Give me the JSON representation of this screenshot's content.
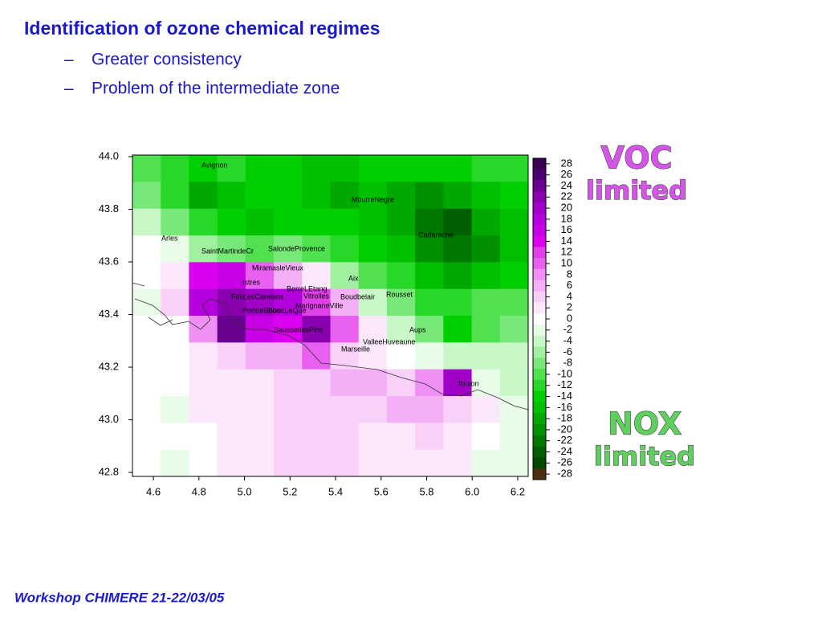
{
  "header": {
    "title": "Identification of ozone chemical regimes"
  },
  "bullets": [
    "Greater consistency",
    "Problem of the intermediate zone"
  ],
  "map": {
    "type": "heatmap",
    "xlim": [
      4.508,
      6.246
    ],
    "ylim": [
      42.785,
      44.006
    ],
    "xticks": [
      4.6,
      4.8,
      {
        "value": 5.0,
        "label": "5.0"
      },
      5.2,
      5.4,
      5.6,
      5.8,
      {
        "value": 6.0,
        "label": "6.0"
      },
      6.2
    ],
    "yticks": [
      {
        "value": 44.0,
        "label": "44.0"
      },
      43.8,
      43.6,
      43.4,
      43.2,
      {
        "value": 43.0,
        "label": "43.0"
      },
      42.8
    ],
    "colorbar": {
      "ticks": [
        28,
        26,
        24,
        22,
        20,
        18,
        16,
        14,
        12,
        10,
        8,
        6,
        4,
        2,
        0,
        -2,
        -4,
        -6,
        -8,
        -10,
        -12,
        -14,
        -16,
        -18,
        -20,
        -22,
        -24,
        -26,
        -28
      ],
      "colors": [
        "#3a0050",
        "#4b0070",
        "#6a0090",
        "#8a00b0",
        "#a000c8",
        "#b400dc",
        "#c800e6",
        "#dc00f0",
        "#e040e8",
        "#e860f0",
        "#f090f4",
        "#f4b0f6",
        "#f8d0f8",
        "#fce8fc",
        "#ffffff",
        "#e8fce8",
        "#c8f8c8",
        "#a0f0a0",
        "#78e878",
        "#50e050",
        "#28d828",
        "#00d000",
        "#00c000",
        "#00a800",
        "#009000",
        "#007800",
        "#006000",
        "#004800",
        "#4a3010"
      ]
    },
    "grid": {
      "rows": [
        [
          -10,
          -12,
          -14,
          -12,
          -14,
          -14,
          -16,
          -16,
          -14,
          -14,
          -14,
          -14,
          -12,
          -12
        ],
        [
          -8,
          -12,
          -18,
          -16,
          -14,
          -14,
          -16,
          -18,
          -16,
          -18,
          -20,
          -18,
          -16,
          -14
        ],
        [
          -4,
          -8,
          -12,
          -14,
          -16,
          -14,
          -14,
          -14,
          -16,
          -18,
          -22,
          -24,
          -18,
          -16
        ],
        [
          0,
          -2,
          -6,
          -8,
          -10,
          -8,
          -10,
          -12,
          -14,
          -16,
          -20,
          -22,
          -20,
          -16
        ],
        [
          0,
          2,
          14,
          16,
          10,
          6,
          2,
          -6,
          -10,
          -12,
          -16,
          -18,
          -16,
          -14
        ],
        [
          -2,
          4,
          18,
          22,
          20,
          18,
          12,
          6,
          -4,
          -8,
          -12,
          -12,
          -10,
          -10
        ],
        [
          0,
          0,
          8,
          24,
          16,
          14,
          22,
          10,
          2,
          -4,
          -8,
          -14,
          -10,
          -8
        ],
        [
          0,
          0,
          2,
          4,
          6,
          6,
          10,
          4,
          2,
          0,
          -2,
          -4,
          -4,
          -4
        ],
        [
          0,
          0,
          2,
          2,
          2,
          4,
          4,
          6,
          6,
          4,
          8,
          20,
          -2,
          -4
        ],
        [
          0,
          -2,
          2,
          2,
          2,
          4,
          4,
          4,
          4,
          6,
          6,
          4,
          2,
          -2
        ],
        [
          0,
          0,
          0,
          2,
          2,
          4,
          4,
          4,
          2,
          2,
          4,
          2,
          0,
          -2
        ],
        [
          0,
          -2,
          0,
          2,
          2,
          4,
          4,
          4,
          2,
          2,
          2,
          2,
          -2,
          -2
        ]
      ]
    },
    "places": [
      "Avignon",
      "MourreNegre",
      "Arles",
      "Cadarache",
      "SaintMartindeCr",
      "SalondeProvence",
      "MiramasleVieux",
      "Aix",
      "Istres",
      "BerreLEtang",
      "FosLesCarabins",
      "Vitrolles",
      "Boudbelair",
      "Rousset",
      "PortdeBouc",
      "BoucLeQue",
      "MarignaneVille",
      "SaussetlesPins",
      "Aups",
      "ValleeHuveaune",
      "Marseille",
      "Toulon"
    ]
  },
  "annotations": {
    "voc": [
      "VOC",
      "limited"
    ],
    "nox": [
      "NOX",
      "limited"
    ]
  },
  "footer": "Workshop CHIMERE 21-22/03/05"
}
